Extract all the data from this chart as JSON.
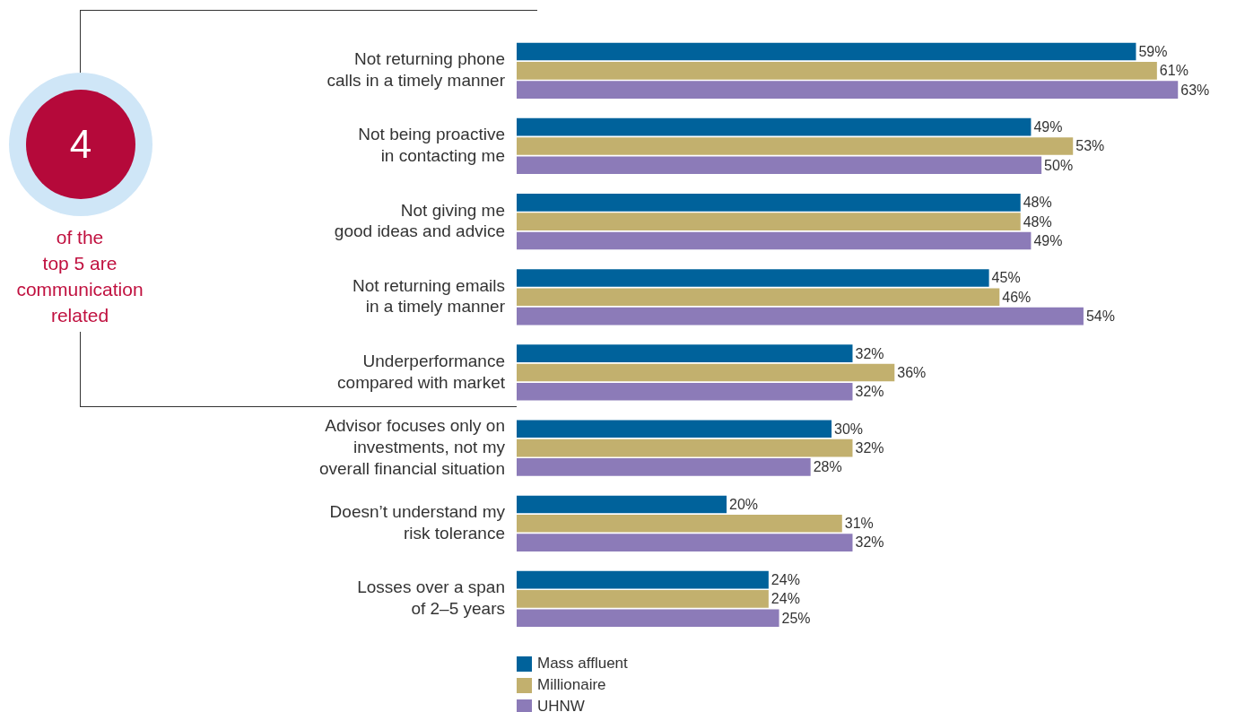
{
  "chart_data": {
    "type": "bar",
    "orientation": "horizontal",
    "categories": [
      "Not returning phone\ncalls in a timely manner",
      "Not being proactive\nin contacting me",
      "Not giving me\ngood ideas and advice",
      "Not returning emails\nin a timely manner",
      "Underperformance\ncompared with market",
      "Advisor focuses only on\ninvestments, not my\noverall financial situation",
      "Doesn’t understand my\nrisk tolerance",
      "Losses over a span\nof 2–5 years"
    ],
    "series": [
      {
        "name": "Mass affluent",
        "color": "#00629b",
        "values": [
          59,
          49,
          48,
          45,
          32,
          30,
          20,
          24
        ],
        "value_labels": [
          "59%",
          "49%",
          "48%",
          "45%",
          "32%",
          "30%",
          "20%",
          "24%"
        ]
      },
      {
        "name": "Millionaire",
        "color": "#c2b06e",
        "values": [
          61,
          53,
          48,
          46,
          36,
          32,
          31,
          24
        ],
        "value_labels": [
          "61%",
          "53%",
          "48%",
          "46%",
          "36%",
          "32%",
          "31%",
          "24%"
        ]
      },
      {
        "name": "UHNW",
        "color": "#8c7bb8",
        "values": [
          63,
          50,
          49,
          54,
          32,
          28,
          32,
          25
        ],
        "value_labels": [
          "63%",
          "50%",
          "49%",
          "54%",
          "32%",
          "28%",
          "32%",
          "25%"
        ]
      }
    ],
    "legend": "bottom left",
    "annotations": [
      "4",
      "of the\ntop 5 are\ncommunication\nrelated"
    ]
  }
}
